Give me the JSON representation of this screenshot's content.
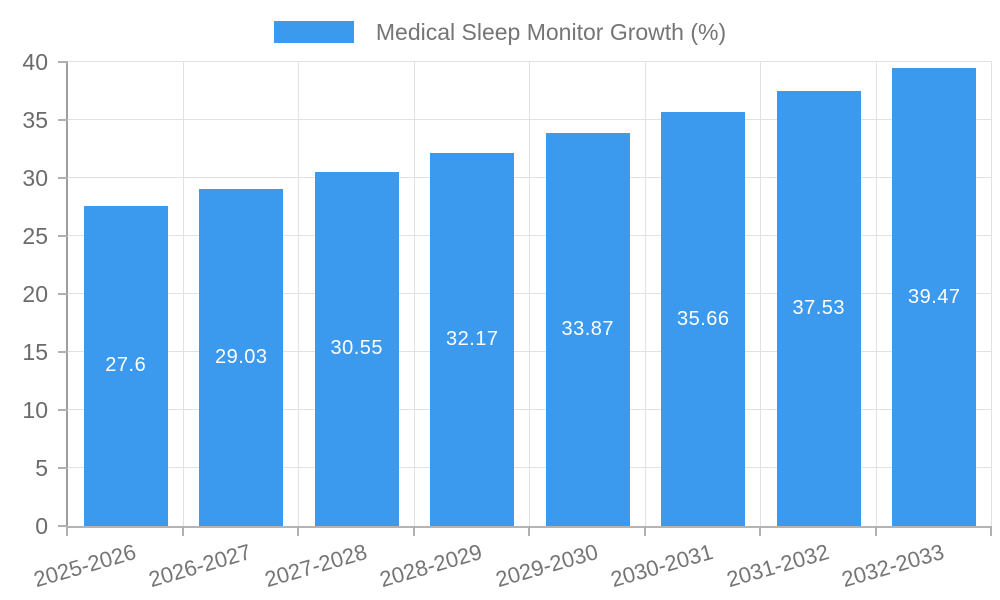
{
  "legend": {
    "label": "Medical Sleep Monitor Growth (%)",
    "swatch_color": "#3b99ee"
  },
  "chart_data": {
    "type": "bar",
    "title": "Medical Sleep Monitor Growth (%)",
    "categories": [
      "2025-2026",
      "2026-2027",
      "2027-2028",
      "2028-2029",
      "2029-2030",
      "2030-2031",
      "2031-2032",
      "2032-2033"
    ],
    "values": [
      27.6,
      29.03,
      30.55,
      32.17,
      33.87,
      35.66,
      37.53,
      39.47
    ],
    "value_labels": [
      "27.6",
      "29.03",
      "30.55",
      "32.17",
      "33.87",
      "35.66",
      "37.53",
      "39.47"
    ],
    "series": [
      {
        "name": "Medical Sleep Monitor Growth (%)",
        "values": [
          27.6,
          29.03,
          30.55,
          32.17,
          33.87,
          35.66,
          37.53,
          39.47
        ]
      }
    ],
    "xlabel": "",
    "ylabel": "",
    "ylim": [
      0,
      40
    ],
    "yticks": [
      0,
      5,
      10,
      15,
      20,
      25,
      30,
      35,
      40
    ],
    "grid": true,
    "legend_position": "top-center",
    "bar_color": "#3b99ee",
    "value_label_position": "center-inside"
  },
  "colors": {
    "bar": "#3b99ee",
    "grid": "#e2e2e2",
    "axis": "#9e9e9e",
    "tick_mark": "#b0b0b0",
    "ytick_label": "#6b6b6b",
    "xtick_label": "#757575",
    "legend_text": "#757575",
    "value_label": "#ffffff",
    "background": "#ffffff"
  }
}
